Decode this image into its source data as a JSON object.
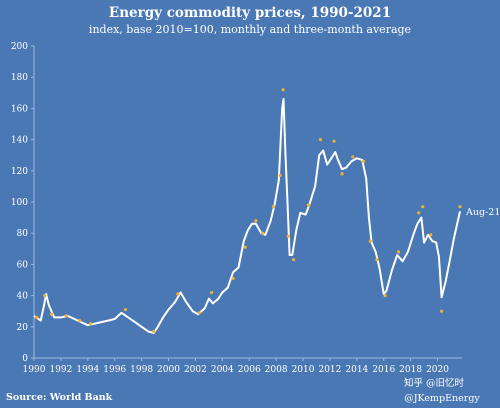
{
  "chart_data": {
    "type": "line",
    "title": "Energy commodity prices, 1990-2021",
    "subtitle": "index, base 2010=100, monthly and three-month average",
    "source": "Source: World Bank",
    "credit": "@JKempEnergy",
    "watermark": "知乎 @旧忆时",
    "end_label": "Aug-21",
    "xlim": [
      1990,
      2021.67
    ],
    "ylim": [
      0,
      200
    ],
    "x_ticks": [
      1990,
      1992,
      1994,
      1996,
      1998,
      2000,
      2002,
      2004,
      2006,
      2008,
      2010,
      2012,
      2014,
      2016,
      2018,
      2020
    ],
    "y_ticks": [
      0,
      20,
      40,
      60,
      80,
      100,
      120,
      140,
      160,
      180,
      200
    ],
    "grid": false,
    "colors": {
      "background": "#4a78b4",
      "line": "#ffffff",
      "points": "#f0b030",
      "text": "#ffffff"
    },
    "series": [
      {
        "kind": "three-month average line",
        "x": [
          1990.0,
          1990.5,
          1990.75,
          1990.9,
          1991.1,
          1991.5,
          1992.0,
          1992.5,
          1993.0,
          1993.5,
          1994.0,
          1994.5,
          1995.0,
          1995.5,
          1996.0,
          1996.5,
          1997.0,
          1997.5,
          1998.0,
          1998.5,
          1998.9,
          1999.2,
          1999.6,
          2000.0,
          2000.5,
          2000.9,
          2001.3,
          2001.8,
          2002.2,
          2002.7,
          2003.0,
          2003.3,
          2003.7,
          2004.0,
          2004.4,
          2004.8,
          2005.2,
          2005.6,
          2005.9,
          2006.2,
          2006.5,
          2006.9,
          2007.2,
          2007.6,
          2007.9,
          2008.2,
          2008.45,
          2008.55,
          2008.7,
          2008.85,
          2009.0,
          2009.2,
          2009.5,
          2009.8,
          2010.2,
          2010.5,
          2010.9,
          2011.2,
          2011.5,
          2011.8,
          2012.1,
          2012.4,
          2012.6,
          2012.9,
          2013.2,
          2013.6,
          2014.0,
          2014.4,
          2014.7,
          2014.9,
          2015.1,
          2015.4,
          2015.7,
          2016.0,
          2016.2,
          2016.6,
          2017.0,
          2017.4,
          2017.8,
          2018.2,
          2018.5,
          2018.8,
          2019.0,
          2019.3,
          2019.6,
          2019.9,
          2020.1,
          2020.3,
          2020.6,
          2020.9,
          2021.2,
          2021.67
        ],
        "values": [
          27,
          24,
          34,
          41,
          34,
          26,
          26,
          27,
          25,
          23,
          21,
          22,
          23,
          24,
          25,
          29,
          26,
          23,
          20,
          17,
          16,
          20,
          26,
          31,
          36,
          42,
          36,
          30,
          28,
          32,
          38,
          35,
          38,
          42,
          45,
          55,
          58,
          75,
          82,
          86,
          86,
          80,
          79,
          88,
          99,
          114,
          160,
          166,
          130,
          98,
          66,
          66,
          82,
          93,
          92,
          99,
          110,
          130,
          133,
          124,
          128,
          132,
          127,
          121,
          122,
          126,
          128,
          127,
          115,
          90,
          74,
          68,
          57,
          41,
          43,
          56,
          66,
          62,
          68,
          79,
          86,
          90,
          74,
          79,
          75,
          74,
          65,
          39,
          49,
          62,
          76,
          94
        ]
      },
      {
        "kind": "monthly points",
        "x": [
          1990.2,
          1990.8,
          1991.3,
          1992.4,
          1993.4,
          1994.2,
          1996.8,
          1998.9,
          2000.7,
          2002.3,
          2003.2,
          2004.8,
          2005.7,
          2006.5,
          2007.0,
          2007.8,
          2008.3,
          2008.52,
          2008.9,
          2009.3,
          2010.4,
          2011.3,
          2012.3,
          2012.9,
          2013.7,
          2014.5,
          2015.0,
          2015.5,
          2016.1,
          2017.1,
          2018.6,
          2018.9,
          2019.5,
          2020.3,
          2021.67
        ],
        "values": [
          26,
          40,
          28,
          27,
          24,
          22,
          31,
          17,
          41,
          29,
          42,
          51,
          71,
          88,
          80,
          97,
          117,
          172,
          78,
          63,
          98,
          140,
          139,
          118,
          129,
          126,
          75,
          63,
          40,
          68,
          93,
          97,
          79,
          30,
          97
        ]
      }
    ]
  }
}
